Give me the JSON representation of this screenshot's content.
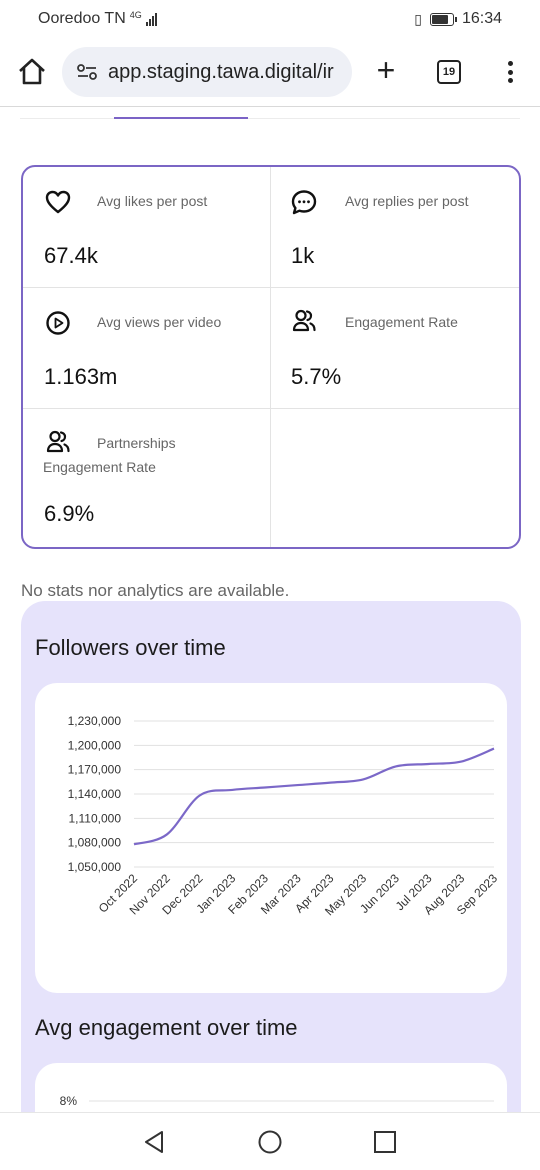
{
  "status_bar": {
    "carrier": "Ooredoo TN",
    "network": "4G",
    "time": "16:34"
  },
  "browser": {
    "url": "app.staging.tawa.digital/ir",
    "tab_count": "19"
  },
  "stats": [
    {
      "icon": "heart-icon",
      "label": "Avg likes per post",
      "value": "67.4k"
    },
    {
      "icon": "chat-bubble-icon",
      "label": "Avg replies per post",
      "value": "1k"
    },
    {
      "icon": "play-icon",
      "label": "Avg views per video",
      "value": "1.163m"
    },
    {
      "icon": "users-icon",
      "label": "Engagement Rate",
      "value": "5.7%"
    },
    {
      "icon": "users-icon",
      "label_line1": "Partnerships",
      "label_line2": "Engagement Rate",
      "value": "6.9%"
    }
  ],
  "no_stats_message": "No stats nor analytics are available.",
  "followers_section": {
    "title": "Followers over time"
  },
  "engagement_section": {
    "title": "Avg engagement over time"
  },
  "chart_data": [
    {
      "type": "line",
      "title": "Followers over time",
      "x": [
        "Oct 2022",
        "Nov 2022",
        "Dec 2022",
        "Jan 2023",
        "Feb 2023",
        "Mar 2023",
        "Apr 2023",
        "May 2023",
        "Jun 2023",
        "Jul 2023",
        "Aug 2023",
        "Sep 2023"
      ],
      "y": [
        1078000,
        1090000,
        1138000,
        1145000,
        1148000,
        1151000,
        1154000,
        1158000,
        1174000,
        1177000,
        1180000,
        1196000
      ],
      "yticks": [
        "1,050,000",
        "1,080,000",
        "1,110,000",
        "1,140,000",
        "1,170,000",
        "1,200,000",
        "1,230,000"
      ],
      "ylim": [
        1050000,
        1230000
      ],
      "grid": true,
      "color": "#7b68c8"
    },
    {
      "type": "line",
      "title": "Avg engagement over time",
      "yticks": [
        "8%"
      ],
      "grid": true
    }
  ],
  "colors": {
    "accent": "#7b66c5",
    "section_bg": "#e6e3fb"
  }
}
